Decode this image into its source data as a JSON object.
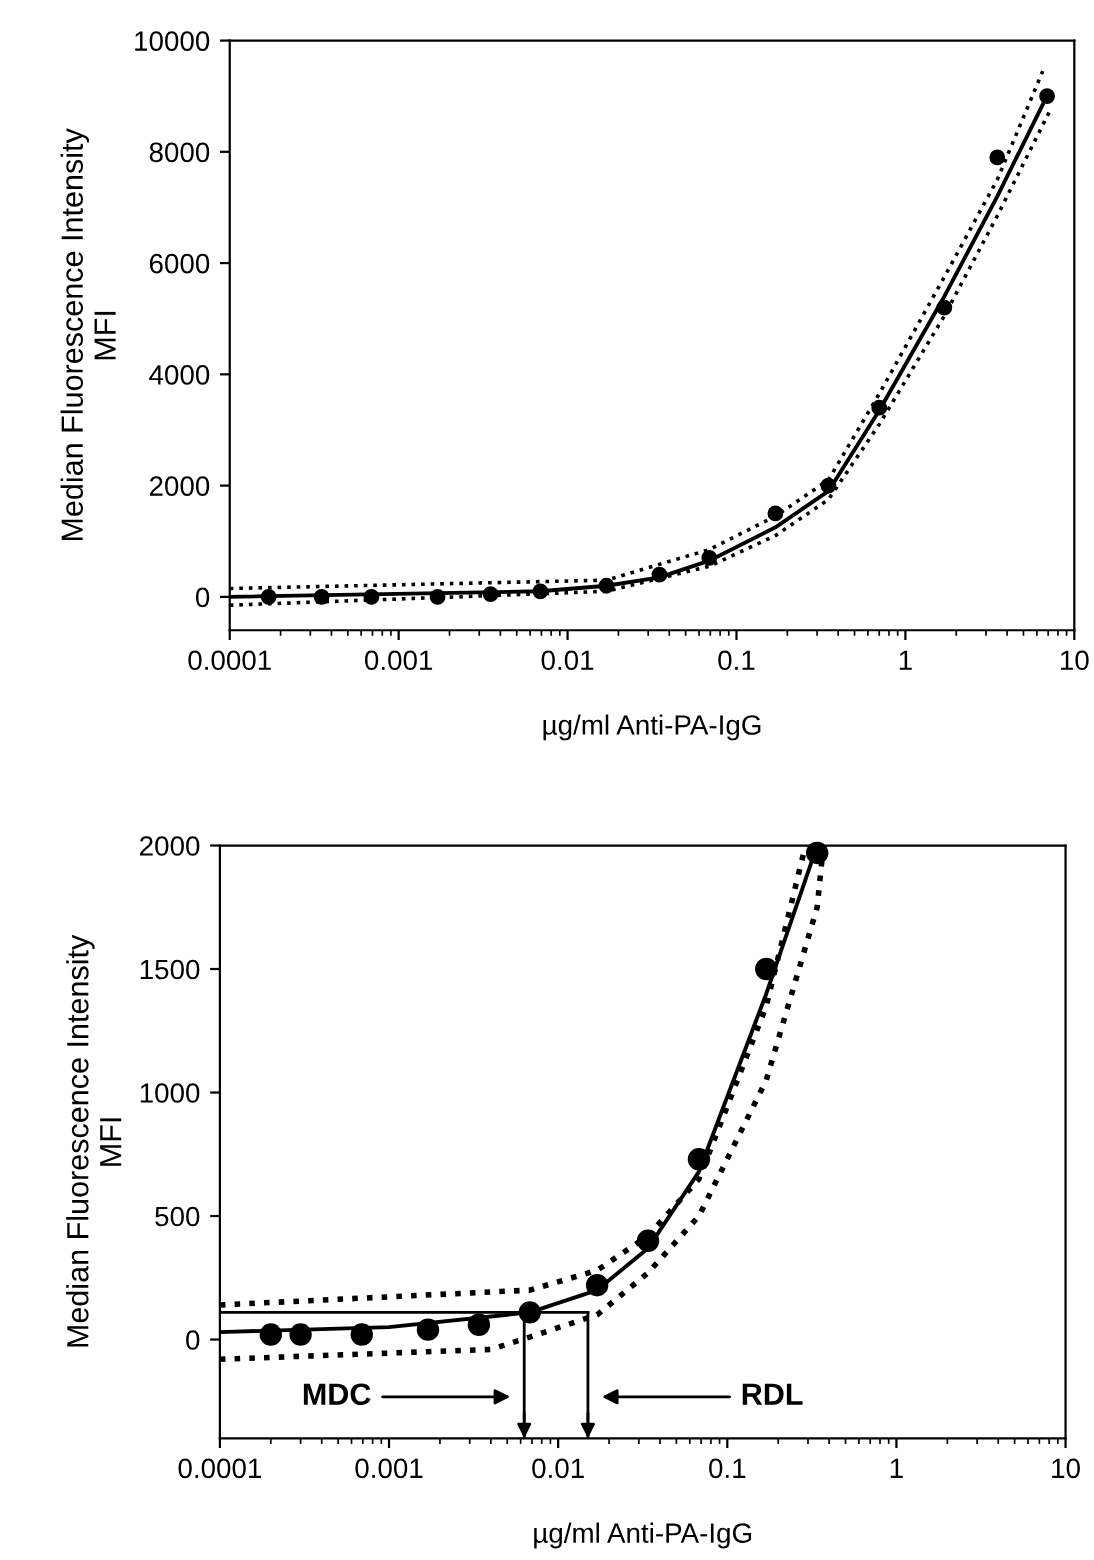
{
  "chart_data": [
    {
      "type": "scatter",
      "xlabel": "µg/ml Anti-PA-IgG",
      "ylabel": "Median Fluorescence Intensity\nMFI",
      "log": "x",
      "marker": "circle",
      "grid": false,
      "xlim": [
        0.0001,
        10
      ],
      "xticks": [
        {
          "value": 0.0001,
          "label": "0.0001"
        },
        {
          "value": 0.001,
          "label": "0.001"
        },
        {
          "value": 0.01,
          "label": "0.01"
        },
        {
          "value": 0.1,
          "label": "0.1"
        },
        {
          "value": 1,
          "label": "1"
        },
        {
          "value": 10,
          "label": "10"
        }
      ],
      "ylim": [
        -600,
        10000
      ],
      "yticks": [
        0,
        2000,
        4000,
        6000,
        8000,
        10000
      ],
      "series": [
        {
          "color": "#000000",
          "x": [
            0.00017,
            0.00035,
            0.00069,
            0.0017,
            0.0035,
            0.0069,
            0.017,
            0.035,
            0.069,
            0.17,
            0.35,
            0.7,
            1.7,
            3.5,
            6.9
          ],
          "values": [
            0,
            0,
            0,
            0,
            50,
            100,
            200,
            400,
            700,
            1500,
            2000,
            3400,
            5200,
            7900,
            9000
          ]
        },
        {
          "type": "line",
          "line_style": "solid",
          "marker": "none",
          "color": "#000000",
          "x": [
            0.0001,
            0.0069,
            0.017,
            0.035,
            0.069,
            0.17,
            0.35,
            0.7,
            1.7,
            3.5,
            6.5
          ],
          "values": [
            0,
            100,
            200,
            350,
            650,
            1250,
            1900,
            3350,
            5400,
            7200,
            8850
          ]
        },
        {
          "type": "line",
          "line_style": "dotted",
          "marker": "none",
          "color": "#000000",
          "x": [
            0.0001,
            0.017,
            0.069,
            0.17,
            0.35,
            0.7,
            1.7,
            3.5,
            6.5
          ],
          "values": [
            150,
            300,
            850,
            1450,
            2100,
            3650,
            5750,
            7500,
            9450
          ]
        },
        {
          "type": "line",
          "line_style": "dotted",
          "marker": "none",
          "color": "#000000",
          "x": [
            0.0001,
            0.017,
            0.069,
            0.17,
            0.35,
            0.7,
            1.7,
            3.5,
            7.2
          ],
          "values": [
            -150,
            100,
            550,
            1100,
            1750,
            3100,
            5050,
            6850,
            8750
          ]
        }
      ]
    },
    {
      "type": "scatter",
      "xlabel": "µg/ml Anti-PA-IgG",
      "ylabel": "Median Fluorescence Intensity\nMFI",
      "log": "x",
      "marker": "circle",
      "grid": false,
      "xlim": [
        0.0001,
        10
      ],
      "xticks": [
        {
          "value": 0.0001,
          "label": "0.0001"
        },
        {
          "value": 0.001,
          "label": "0.001"
        },
        {
          "value": 0.01,
          "label": "0.01"
        },
        {
          "value": 0.1,
          "label": "0.1"
        },
        {
          "value": 1,
          "label": "1"
        },
        {
          "value": 10,
          "label": "10"
        }
      ],
      "ylim": [
        -400,
        2000
      ],
      "yticks": [
        0,
        500,
        1000,
        1500,
        2000
      ],
      "series": [
        {
          "color": "#000000",
          "x": [
            0.0002,
            0.0003,
            0.00069,
            0.0017,
            0.0034,
            0.0068,
            0.017,
            0.034,
            0.068,
            0.17,
            0.34
          ],
          "values": [
            20,
            20,
            20,
            40,
            60,
            110,
            220,
            400,
            730,
            1500,
            1970
          ]
        },
        {
          "type": "line",
          "line_style": "solid",
          "marker": "none",
          "color": "#000000",
          "x": [
            0.0001,
            0.001,
            0.0068,
            0.017,
            0.034,
            0.068,
            0.17,
            0.34
          ],
          "values": [
            30,
            50,
            110,
            200,
            370,
            680,
            1400,
            2000
          ]
        },
        {
          "type": "line",
          "line_style": "dotted",
          "marker": "none",
          "color": "#000000",
          "x": [
            0.0001,
            0.0068,
            0.017,
            0.034,
            0.068,
            0.17,
            0.29
          ],
          "values": [
            140,
            200,
            280,
            420,
            650,
            1350,
            2000
          ]
        },
        {
          "type": "line",
          "line_style": "dotted",
          "marker": "none",
          "color": "#000000",
          "x": [
            0.0001,
            0.004,
            0.0068,
            0.017,
            0.034,
            0.068,
            0.17,
            0.34,
            0.37
          ],
          "values": [
            -80,
            -40,
            10,
            100,
            270,
            500,
            1050,
            1750,
            2000
          ]
        }
      ],
      "ref_lines": [
        {
          "axis": "y",
          "value": 110
        },
        {
          "axis": "x",
          "value": 0.0063
        },
        {
          "axis": "x",
          "value": 0.015
        }
      ],
      "annotations": [
        "MDC",
        "RDL"
      ]
    }
  ]
}
